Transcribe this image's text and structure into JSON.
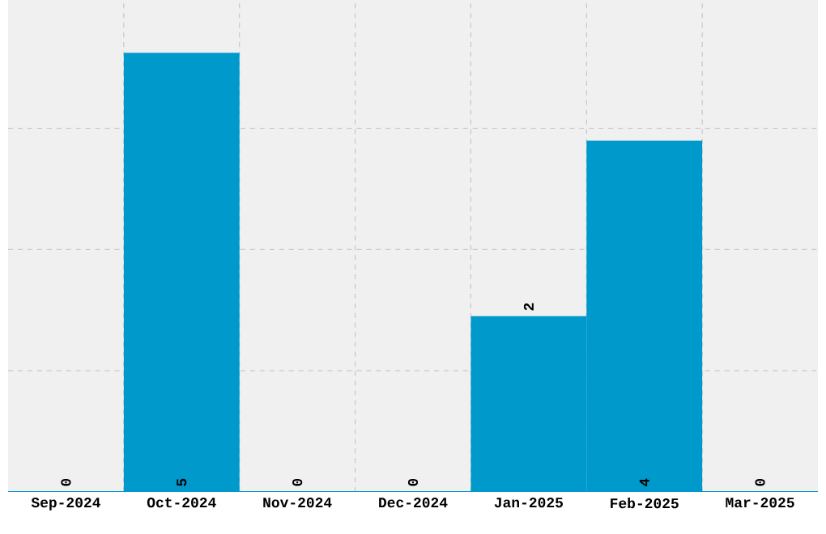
{
  "chart_data": {
    "type": "bar",
    "categories": [
      "Sep-2024",
      "Oct-2024",
      "Nov-2024",
      "Dec-2024",
      "Jan-2025",
      "Feb-2025",
      "Mar-2025"
    ],
    "values": [
      0,
      5,
      0,
      0,
      2,
      4,
      0
    ],
    "color": "#0099cc",
    "ylim": [
      0,
      5.6
    ],
    "yticks": [
      {
        "value": 1.38,
        "label": null
      },
      {
        "value": 2.76,
        "label": null
      },
      {
        "value": 4.14,
        "label": null
      }
    ],
    "tick_labels": "x",
    "grid": true,
    "data_labels": true
  }
}
